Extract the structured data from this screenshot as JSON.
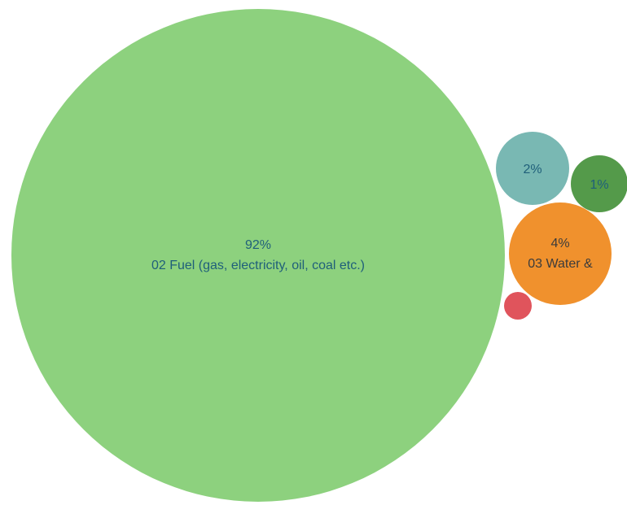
{
  "chart_data": {
    "type": "bubble",
    "title": "",
    "bubbles": [
      {
        "percent_label": "92%",
        "category_label": "02 Fuel (gas, electricity, oil, coal etc.)",
        "value": 92,
        "color": "#8dd17e",
        "text_color": "#1f5f7a"
      },
      {
        "percent_label": "4%",
        "category_label": "03 Water &",
        "value": 4,
        "color": "#f0912d",
        "text_color": "#3b3b3b"
      },
      {
        "percent_label": "2%",
        "category_label": "",
        "value": 2,
        "color": "#79b8b3",
        "text_color": "#1f5f7a"
      },
      {
        "percent_label": "1%",
        "category_label": "",
        "value": 1,
        "color": "#549a4a",
        "text_color": "#1f5f7a"
      },
      {
        "percent_label": "",
        "category_label": "",
        "value": 0.3,
        "color": "#e0545c",
        "text_color": "#1f5f7a"
      }
    ]
  }
}
